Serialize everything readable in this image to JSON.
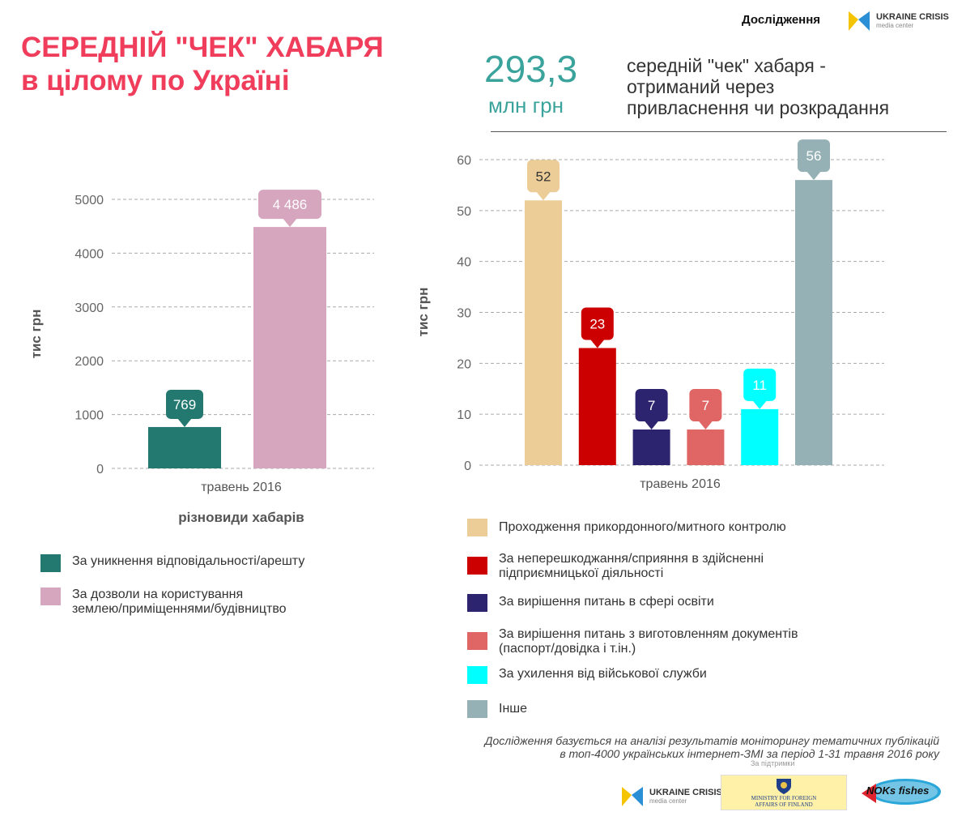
{
  "header": {
    "title_line1": "СЕРЕДНІЙ \"ЧЕК\" ХАБАРЯ",
    "title_line2": "в цілому по Україні",
    "research_label": "Дослідження",
    "brand_name": "UKRAINE CRISIS",
    "brand_sub": "media center"
  },
  "highlight": {
    "value": "293,3",
    "unit": "млн грн",
    "desc_line1": "середній \"чек\" хабаря -",
    "desc_line2": "отриманий через",
    "desc_line3": "привласнення чи розкрадання"
  },
  "chart_data": [
    {
      "type": "bar",
      "ylabel": "тис грн",
      "xlabel": "різновиди хабарів",
      "categories": [
        "травень 2016"
      ],
      "ylim": [
        0,
        5000
      ],
      "yticks": [
        0,
        1000,
        2000,
        3000,
        4000,
        5000
      ],
      "grid": true,
      "series": [
        {
          "name": "За уникнення відповідальності/арешту",
          "values": [
            769
          ],
          "label": "769",
          "color": "#23796f"
        },
        {
          "name": "За дозволи на користування землею/приміщеннями/будівництво",
          "values": [
            4486
          ],
          "label": "4 486",
          "color": "#d6a5be"
        }
      ]
    },
    {
      "type": "bar",
      "ylabel": "тис грн",
      "categories": [
        "травень 2016"
      ],
      "ylim": [
        0,
        60
      ],
      "yticks": [
        0,
        10,
        20,
        30,
        40,
        50,
        60
      ],
      "grid": true,
      "series": [
        {
          "name": "Проходження прикордонного/митного контролю",
          "values": [
            52
          ],
          "label": "52",
          "color": "#eccd98",
          "label_text_color": "#333333"
        },
        {
          "name": "За неперешкоджання/сприяння в здійсненні підприємницької діяльності",
          "values": [
            23
          ],
          "label": "23",
          "color": "#cc0000",
          "label_text_color": "#ffffff"
        },
        {
          "name": "За вирішення питань в сфері освіти",
          "values": [
            7
          ],
          "label": "7",
          "color": "#2d2470",
          "label_text_color": "#ffffff"
        },
        {
          "name": "За вирішення питань з виготовленням документів (паспорт/довідка і т.ін.)",
          "values": [
            7
          ],
          "label": "7",
          "color": "#e06666",
          "label_text_color": "#ffffff"
        },
        {
          "name": "За ухилення від військової служби",
          "values": [
            11
          ],
          "label": "11",
          "color": "#00ffff",
          "label_text_color": "#ffffff"
        },
        {
          "name": "Інше",
          "values": [
            56
          ],
          "label": "56",
          "color": "#95b1b5",
          "label_text_color": "#ffffff"
        }
      ]
    }
  ],
  "legend_left": [
    {
      "line1": "За уникнення відповідальності/арешту",
      "line2": "",
      "color": "#23796f"
    },
    {
      "line1": "За дозволи на користування",
      "line2": "землею/приміщеннями/будівництво",
      "color": "#d6a5be"
    }
  ],
  "legend_right": [
    {
      "line1": "Проходження прикордонного/митного контролю",
      "line2": "",
      "color": "#eccd98"
    },
    {
      "line1": "За неперешкоджання/сприяння в здійсненні",
      "line2": "підприємницької діяльності",
      "color": "#cc0000"
    },
    {
      "line1": "За вирішення питань в сфері освіти",
      "line2": "",
      "color": "#2d2470"
    },
    {
      "line1": "За вирішення питань з виготовленням документів",
      "line2": "(паспорт/довідка і т.ін.)",
      "color": "#e06666"
    },
    {
      "line1": "За ухилення від військової служби",
      "line2": "",
      "color": "#00ffff"
    },
    {
      "line1": "Інше",
      "line2": "",
      "color": "#95b1b5"
    }
  ],
  "footer": {
    "note_line1": "Дослідження базується на аналізі результатів моніторингу тематичних публікацій",
    "note_line2": "в топ-4000 українських інтернет-ЗМІ за період 1-31 травня 2016 року",
    "support": "За підтримки",
    "sponsor1_name": "UKRAINE CRISIS",
    "sponsor1_sub": "media center",
    "sponsor2_top": "MINISTRY FOR FOREIGN",
    "sponsor2_bottom": "AFFAIRS OF FINLAND",
    "sponsor3_text": "NOKs fishes"
  }
}
